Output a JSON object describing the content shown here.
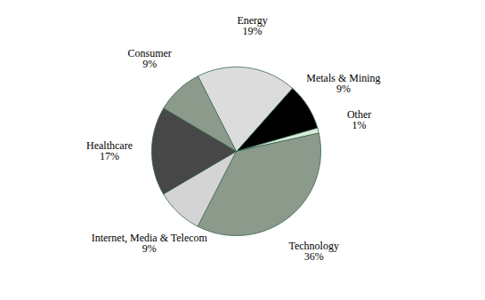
{
  "chart_data": {
    "type": "pie",
    "categories": [
      "Metals & Mining",
      "Other",
      "Technology",
      "Internet, Media & Telecom",
      "Healthcare",
      "Consumer",
      "Energy"
    ],
    "values": [
      9,
      1,
      36,
      9,
      17,
      9,
      19
    ],
    "value_labels": [
      "9%",
      "1%",
      "36%",
      "9%",
      "17%",
      "9%",
      "19%"
    ],
    "colors": [
      "#000000",
      "#d8ead8",
      "#8c9a8c",
      "#d4d4d4",
      "#474747",
      "#8c9a8c",
      "#dcdcdc"
    ],
    "data_labels": true
  }
}
